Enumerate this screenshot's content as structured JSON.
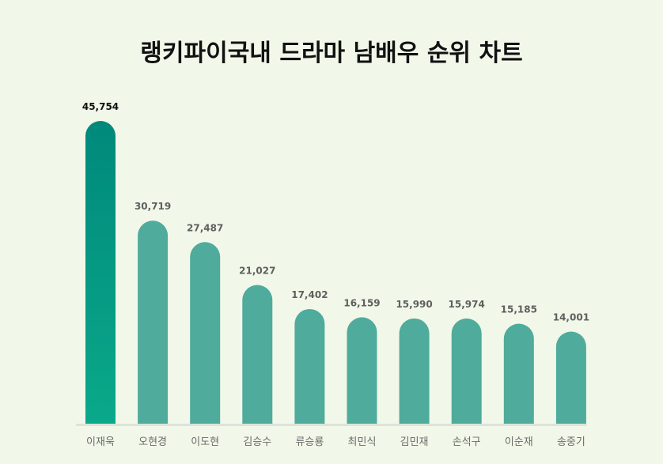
{
  "chart_data": {
    "type": "bar",
    "title": "랭키파이국내 드라마 남배우 순위 차트",
    "xlabel": "",
    "ylabel": "",
    "categories": [
      "이재욱",
      "오현경",
      "이도현",
      "김승수",
      "류승룡",
      "최민식",
      "김민재",
      "손석구",
      "이순재",
      "송중기"
    ],
    "values": [
      45754,
      30719,
      27487,
      21027,
      17402,
      16159,
      15990,
      15974,
      15185,
      14001
    ],
    "value_labels": [
      "45,754",
      "30,719",
      "27,487",
      "21,027",
      "17,402",
      "16,159",
      "15,990",
      "15,974",
      "15,185",
      "14,001"
    ],
    "ylim": [
      0,
      45754
    ],
    "grid": false,
    "legend": "none"
  },
  "colors": {
    "background": "#f1f8e9",
    "bar": "#4fab9c",
    "highlight_top": "#00897b",
    "highlight_bottom": "#0aa98a",
    "baseline": "#dde3dc"
  }
}
